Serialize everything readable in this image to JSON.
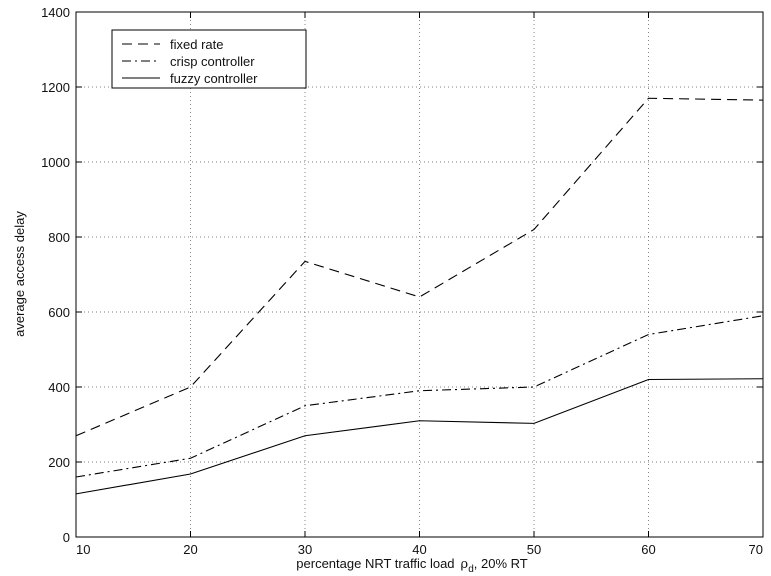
{
  "chart_data": {
    "type": "line",
    "x": [
      10,
      20,
      30,
      40,
      50,
      60,
      70
    ],
    "xlim": [
      10,
      70
    ],
    "ylim": [
      0,
      1400
    ],
    "xticks": [
      10,
      20,
      30,
      40,
      50,
      60,
      70
    ],
    "yticks": [
      0,
      200,
      400,
      600,
      800,
      1000,
      1200,
      1400
    ],
    "xlabel": {
      "prefix": "percentage NRT traffic load",
      "symbol": "ρ",
      "subscript": "d",
      "suffix": ", 20% RT"
    },
    "ylabel": "average access delay",
    "grid": true,
    "legend_position": "top-left",
    "series": [
      {
        "name": "fixed rate",
        "style": "dashed",
        "color": "#000000",
        "values": [
          270,
          400,
          735,
          640,
          820,
          1170,
          1165
        ]
      },
      {
        "name": "crisp controller",
        "style": "dashdot",
        "color": "#000000",
        "values": [
          160,
          210,
          350,
          390,
          400,
          540,
          590
        ]
      },
      {
        "name": "fuzzy controller",
        "style": "solid",
        "color": "#000000",
        "values": [
          115,
          168,
          270,
          310,
          303,
          420,
          422
        ]
      }
    ]
  }
}
